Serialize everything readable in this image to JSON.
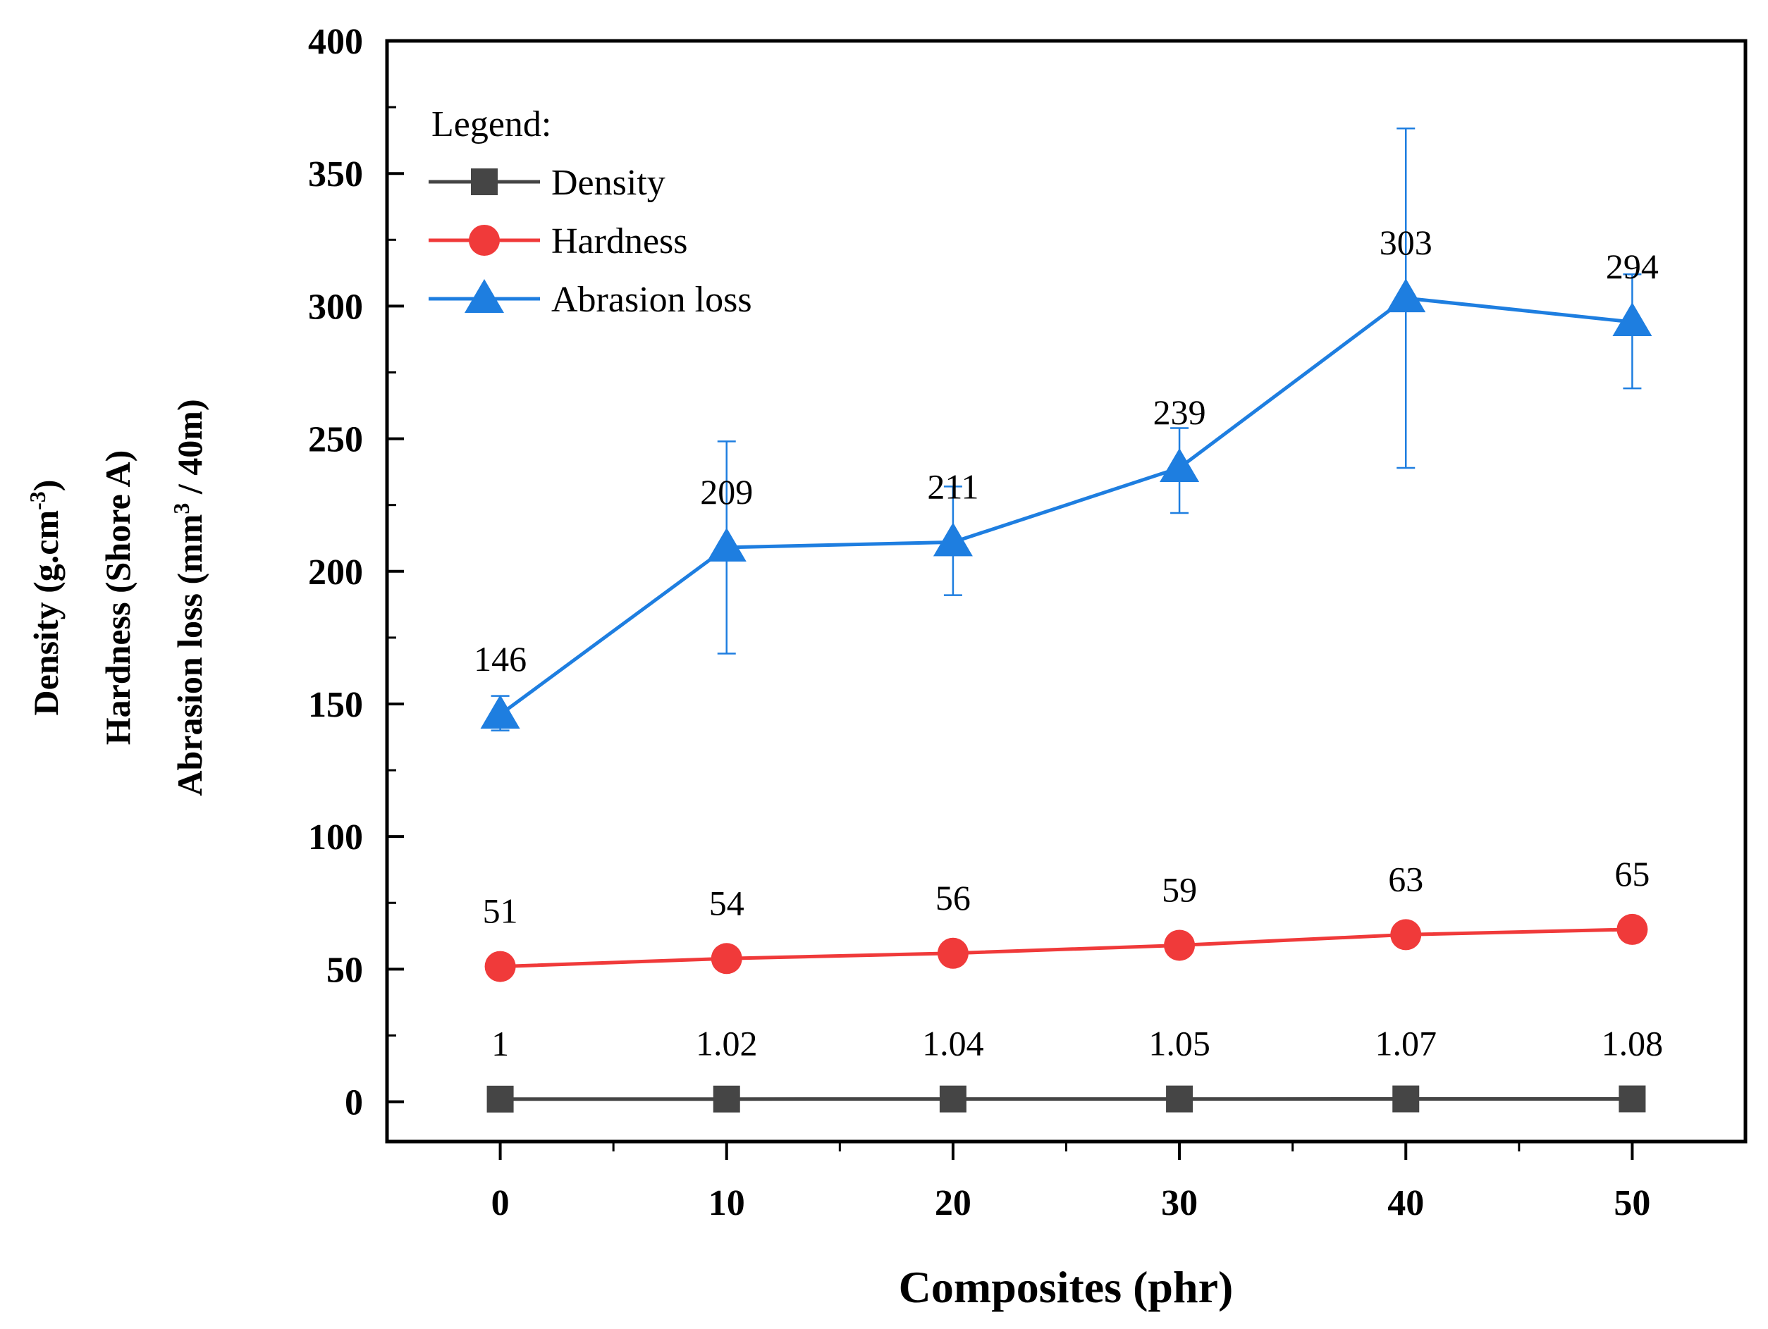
{
  "chart_data": {
    "type": "line",
    "x": [
      0,
      10,
      20,
      30,
      40,
      50
    ],
    "xlabel": "Composites (phr)",
    "ylabel_lines": {
      "density_prefix": "Density (g.cm",
      "density_sup": "-3",
      "density_suffix": ")",
      "hardness": "Hardness (Shore A)",
      "abrasion_prefix": "Abrasion loss (mm",
      "abrasion_sup": "3",
      "abrasion_suffix": " / 40m)"
    },
    "xlim": [
      -5,
      55
    ],
    "ylim": [
      -15,
      400
    ],
    "xticks": [
      0,
      10,
      20,
      30,
      40,
      50
    ],
    "yticks": [
      0,
      50,
      100,
      150,
      200,
      250,
      300,
      350,
      400
    ],
    "legend": {
      "title": "Legend:",
      "placement": "top-left"
    },
    "series": [
      {
        "name": "Density",
        "color": "#454545",
        "marker": "square",
        "values": [
          1,
          1.02,
          1.04,
          1.05,
          1.07,
          1.08
        ],
        "labels": [
          "1",
          "1.02",
          "1.04",
          "1.05",
          "1.07",
          "1.08"
        ],
        "errors": null
      },
      {
        "name": "Hardness",
        "color": "#f03a3a",
        "marker": "circle",
        "values": [
          51,
          54,
          56,
          59,
          63,
          65
        ],
        "labels": [
          "51",
          "54",
          "56",
          "59",
          "63",
          "65"
        ],
        "errors": null
      },
      {
        "name": "Abrasion loss",
        "color": "#1e7ee0",
        "marker": "triangle",
        "values": [
          146,
          209,
          211,
          239,
          303,
          294
        ],
        "labels": [
          "146",
          "209",
          "211",
          "239",
          "303",
          "294"
        ],
        "errors": [
          [
            140,
            153
          ],
          [
            169,
            249
          ],
          [
            191,
            232
          ],
          [
            222,
            254
          ],
          [
            239,
            367
          ],
          [
            269,
            312
          ]
        ]
      }
    ]
  }
}
